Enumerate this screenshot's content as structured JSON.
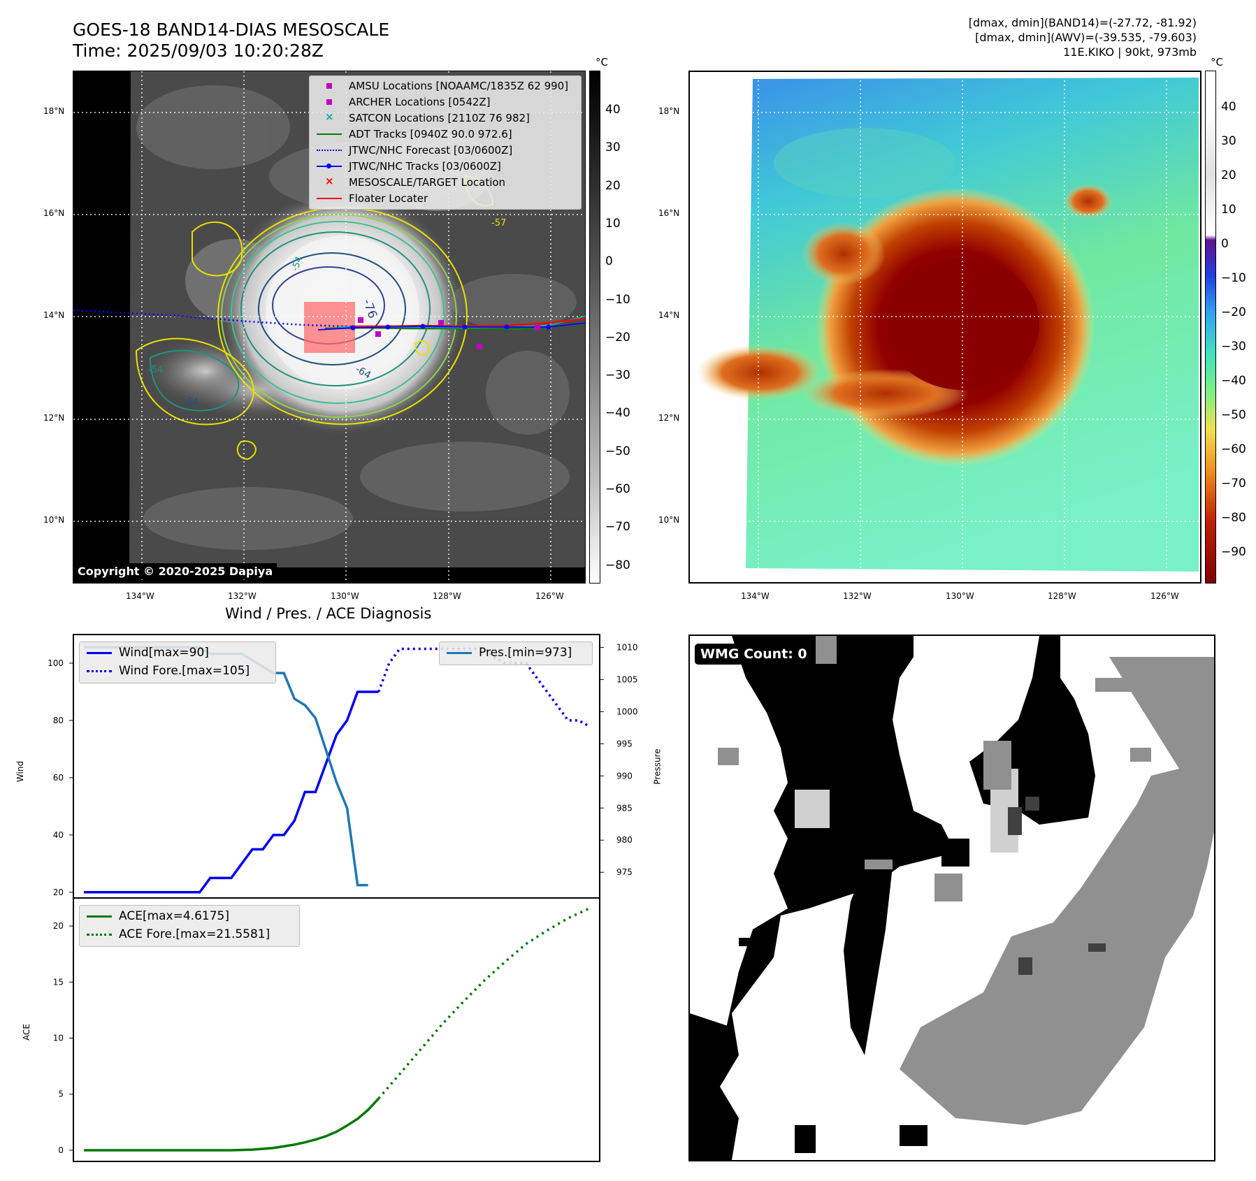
{
  "header": {
    "title": "GOES-18 BAND14-DIAS MESOSCALE",
    "time": "Time: 2025/09/03 10:20:28Z",
    "dmax_band14": "[dmax, dmin](BAND14)=(-27.72, -81.92)",
    "dmax_awv": "[dmax, dmin](AWV)=(-39.535, -79.603)",
    "storm": "11E.KIKO | 90kt, 973mb"
  },
  "map": {
    "lat_labels": [
      "18°N",
      "16°N",
      "14°N",
      "12°N",
      "10°N"
    ],
    "lon_labels": [
      "134°W",
      "132°W",
      "130°W",
      "128°W",
      "126°W"
    ],
    "copyright": "Copyright © 2020-2025 Dapiya"
  },
  "colorbar_left": {
    "unit": "°C",
    "ticks": [
      "40",
      "30",
      "20",
      "10",
      "0",
      "−10",
      "−20",
      "−30",
      "−40",
      "−50",
      "−60",
      "−70",
      "−80"
    ]
  },
  "colorbar_right": {
    "unit": "°C",
    "ticks": [
      "40",
      "30",
      "20",
      "10",
      "0",
      "−10",
      "−20",
      "−30",
      "−40",
      "−50",
      "−60",
      "−70",
      "−80",
      "−90"
    ]
  },
  "legend_left": {
    "items": [
      {
        "label": "AMSU Locations [NOAAMC/1835Z 62 990]",
        "color": "#c000c0",
        "kind": "square"
      },
      {
        "label": "ARCHER Locations [0542Z]",
        "color": "#c000c0",
        "kind": "square"
      },
      {
        "label": "SATCON Locations [2110Z 76 982]",
        "color": "#00b0b0",
        "kind": "x"
      },
      {
        "label": "ADT Tracks [0940Z 90.0 972.6]",
        "color": "#008000",
        "kind": "line"
      },
      {
        "label": "JTWC/NHC Forecast [03/0600Z]",
        "color": "#0000ff",
        "kind": "dotted"
      },
      {
        "label": "JTWC/NHC Tracks [03/0600Z]",
        "color": "#0000ff",
        "kind": "line-dot"
      },
      {
        "label": "MESOSCALE/TARGET Location",
        "color": "#ff0000",
        "kind": "x"
      },
      {
        "label": "Floater Locater",
        "color": "#ff0000",
        "kind": "line"
      }
    ]
  },
  "contour_labels": [
    "-54",
    "-76",
    "-64",
    "-64",
    "-54",
    "-57"
  ],
  "wmg": {
    "label": "WMG Count: 0"
  },
  "chart_data": [
    {
      "type": "line",
      "title": "Wind / Pres. / ACE Diagnosis",
      "ylabel": "Wind",
      "y2label": "Pressure",
      "ylim": [
        18,
        110
      ],
      "y2lim": [
        971,
        1012
      ],
      "yticks": [
        20,
        40,
        60,
        80,
        100
      ],
      "y2ticks": [
        975,
        980,
        985,
        990,
        995,
        1000,
        1005,
        1010
      ],
      "legend_left": [
        "Wind[max=90]",
        "Wind Fore.[max=105]"
      ],
      "legend_right": [
        "Pres.[min=973]"
      ],
      "series": [
        {
          "name": "Wind[max=90]",
          "color": "#0000ee",
          "style": "solid",
          "axis": "left",
          "x": [
            0,
            1,
            2,
            3,
            4,
            5,
            6,
            7,
            8,
            9,
            10,
            11,
            12,
            13,
            14,
            15,
            16,
            17,
            18,
            19,
            20,
            21,
            22,
            23,
            24,
            25,
            26,
            27,
            28
          ],
          "values": [
            20,
            20,
            20,
            20,
            20,
            20,
            20,
            20,
            20,
            20,
            20,
            20,
            25,
            25,
            25,
            30,
            35,
            35,
            40,
            40,
            45,
            55,
            55,
            65,
            75,
            80,
            90,
            90,
            90
          ]
        },
        {
          "name": "Wind Fore.[max=105]",
          "color": "#0000ee",
          "style": "dotted",
          "axis": "left",
          "x": [
            28,
            29,
            30,
            31,
            32,
            33,
            34,
            35,
            36,
            37,
            38,
            39,
            40,
            41,
            42,
            43,
            44,
            45,
            46,
            47,
            48
          ],
          "values": [
            90,
            100,
            105,
            105,
            105,
            105,
            105,
            105,
            105,
            105,
            105,
            102,
            100,
            100,
            100,
            95,
            90,
            85,
            80,
            80,
            78
          ]
        },
        {
          "name": "Pres.[min=973]",
          "color": "#1f77b4",
          "style": "solid",
          "axis": "right",
          "x": [
            0,
            1,
            2,
            3,
            4,
            5,
            6,
            7,
            8,
            9,
            10,
            11,
            12,
            13,
            14,
            15,
            16,
            17,
            18,
            19,
            20,
            21,
            22,
            23,
            24,
            25,
            26,
            27
          ],
          "values": [
            1010,
            1010,
            1010,
            1010,
            1010,
            1010,
            1010,
            1010,
            1010,
            1010,
            1010,
            1010,
            1009,
            1009,
            1009,
            1009,
            1008,
            1007,
            1006,
            1006,
            1002,
            1001,
            999,
            994,
            989,
            985,
            973,
            973
          ]
        }
      ]
    },
    {
      "type": "line",
      "ylabel": "ACE",
      "ylim": [
        -1,
        22.5
      ],
      "yticks": [
        0,
        5,
        10,
        15,
        20
      ],
      "legend": [
        "ACE[max=4.6175]",
        "ACE Fore.[max=21.5581]"
      ],
      "series": [
        {
          "name": "ACE[max=4.6175]",
          "color": "#007700",
          "style": "solid",
          "x": [
            0,
            2,
            4,
            6,
            8,
            10,
            12,
            14,
            16,
            18,
            19,
            20,
            21,
            22,
            23,
            24,
            25,
            26,
            27,
            28
          ],
          "values": [
            0,
            0,
            0,
            0,
            0,
            0,
            0,
            0,
            0.05,
            0.2,
            0.35,
            0.5,
            0.7,
            0.95,
            1.25,
            1.65,
            2.2,
            2.8,
            3.6,
            4.6175
          ]
        },
        {
          "name": "ACE Fore.[max=21.5581]",
          "color": "#007700",
          "style": "dotted",
          "x": [
            28,
            30,
            32,
            34,
            36,
            38,
            40,
            42,
            44,
            46,
            48
          ],
          "values": [
            4.6175,
            6.8,
            9.0,
            11.2,
            13.2,
            15.1,
            16.8,
            18.4,
            19.6,
            20.7,
            21.5581
          ]
        }
      ]
    }
  ]
}
